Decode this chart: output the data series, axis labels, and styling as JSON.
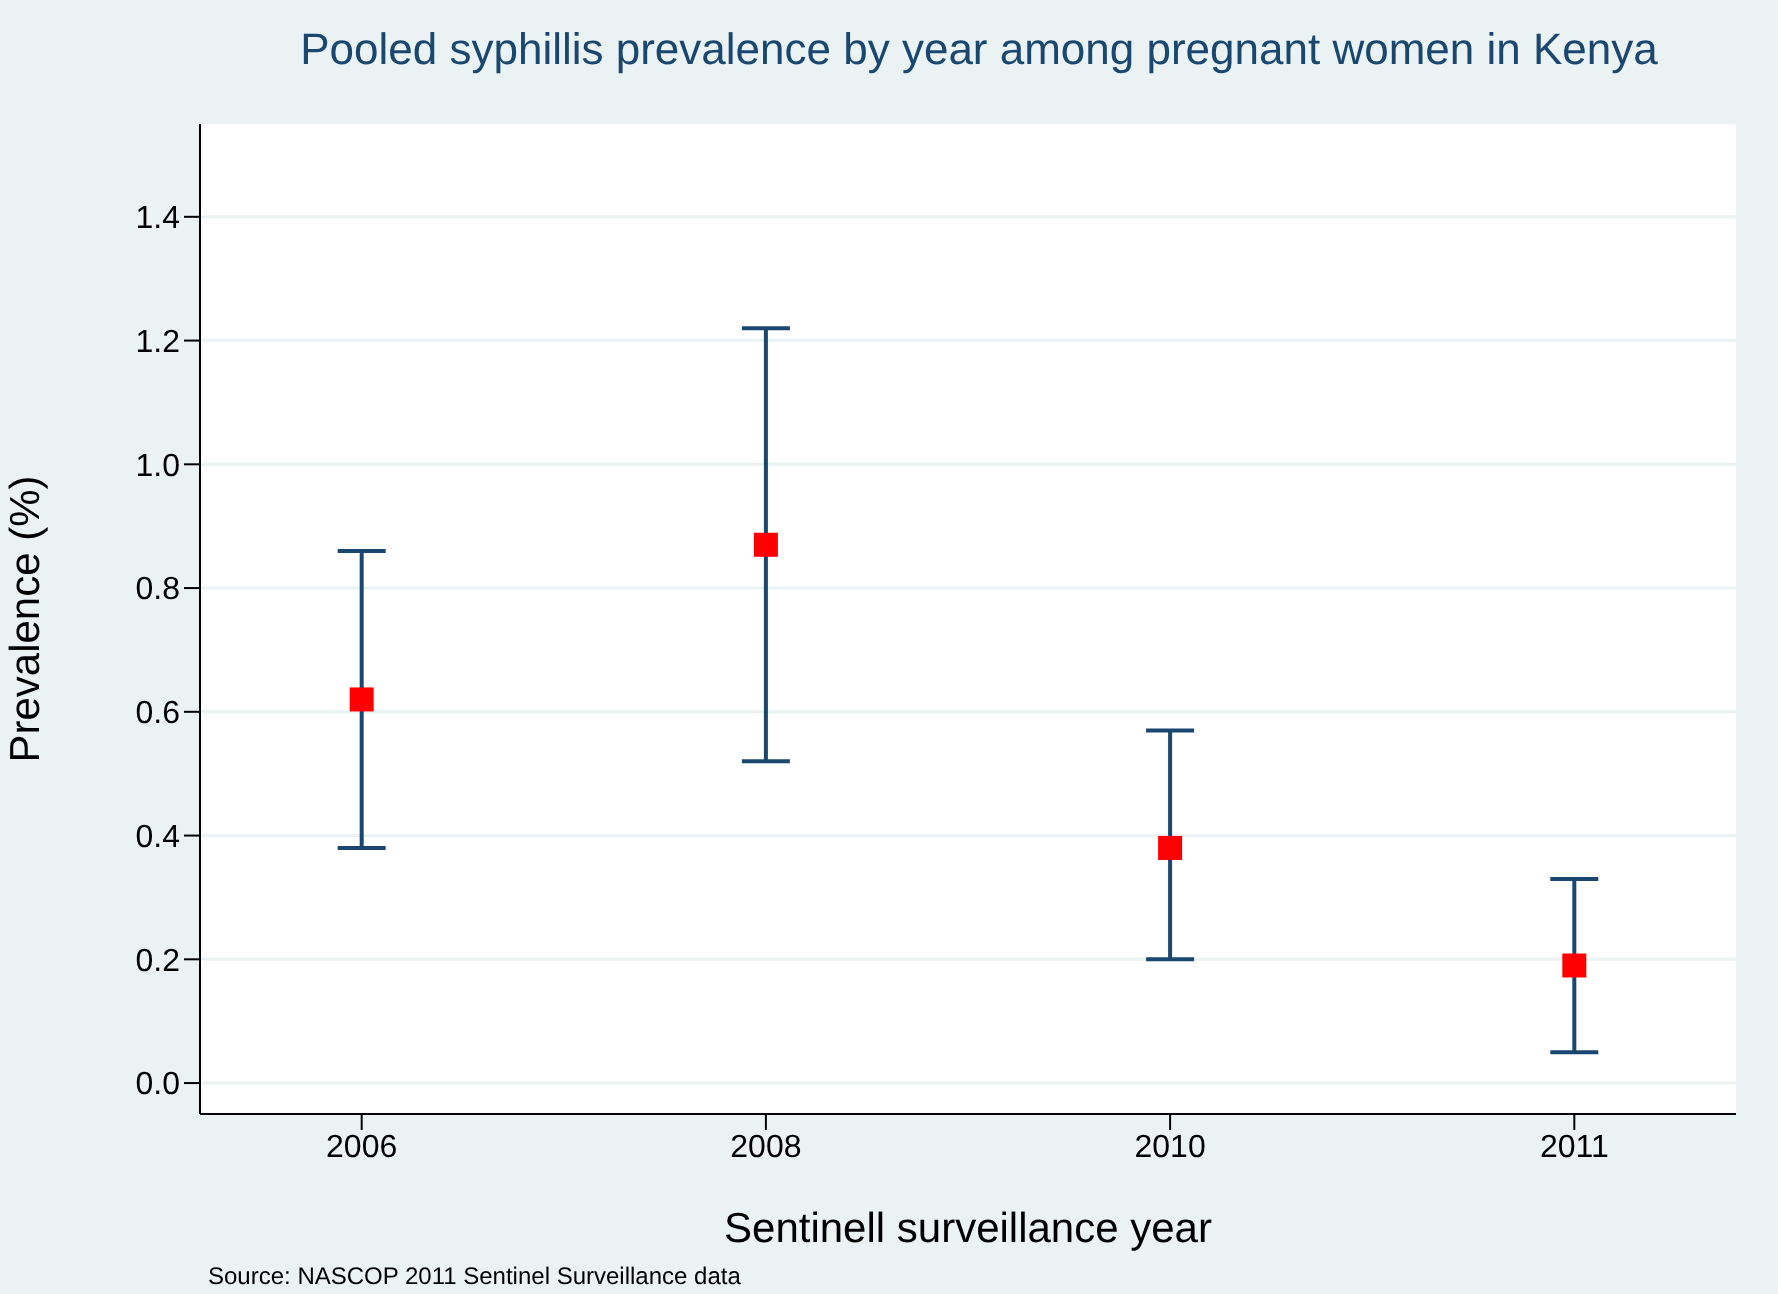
{
  "chart_data": {
    "type": "scatter",
    "title": "Pooled syphillis prevalence by year among pregnant women in Kenya",
    "xlabel": "Sentinell surveillance year",
    "ylabel": "Prevalence (%)",
    "categories": [
      "2006",
      "2008",
      "2010",
      "2011"
    ],
    "series": [
      {
        "color": "#ff0000",
        "values": [
          0.62,
          0.87,
          0.38,
          0.19
        ],
        "errors": [
          [
            0.38,
            0.86
          ],
          [
            0.52,
            1.22
          ],
          [
            0.2,
            0.57
          ],
          [
            0.05,
            0.33
          ]
        ]
      }
    ],
    "ylim": [
      -0.05,
      1.55
    ],
    "yticks": [
      {
        "value": 0,
        "label": "0.0"
      },
      0.2,
      0.4,
      0.6,
      0.8,
      {
        "value": 1,
        "label": "1.0"
      },
      1.2,
      1.4
    ],
    "grid": "y",
    "marker": "square",
    "annotations": [
      "Source: NASCOP 2011 Sentinel Surveillance data"
    ]
  }
}
